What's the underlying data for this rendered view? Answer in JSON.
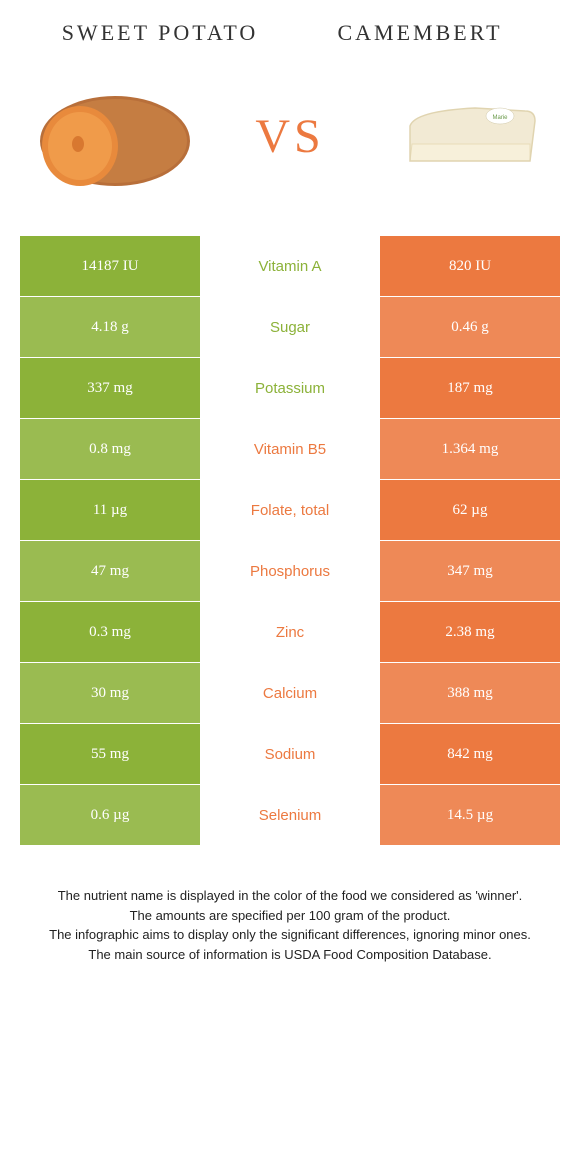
{
  "foods": {
    "left": {
      "name": "SWEET POTATO",
      "color": "#8cb239",
      "winner_text_color": "#8cb239"
    },
    "right": {
      "name": "CAMEMBERT",
      "color": "#ec7940",
      "winner_text_color": "#ec7940"
    }
  },
  "vs_label": "VS",
  "vs_color": "#ec7940",
  "background_color": "#ffffff",
  "row_alt_opacity": 0.88,
  "nutrients": [
    {
      "name": "Vitamin A",
      "left": "14187 IU",
      "right": "820 IU",
      "winner": "left"
    },
    {
      "name": "Sugar",
      "left": "4.18 g",
      "right": "0.46 g",
      "winner": "left"
    },
    {
      "name": "Potassium",
      "left": "337 mg",
      "right": "187 mg",
      "winner": "left"
    },
    {
      "name": "Vitamin B5",
      "left": "0.8 mg",
      "right": "1.364 mg",
      "winner": "right"
    },
    {
      "name": "Folate, total",
      "left": "11 µg",
      "right": "62 µg",
      "winner": "right"
    },
    {
      "name": "Phosphorus",
      "left": "47 mg",
      "right": "347 mg",
      "winner": "right"
    },
    {
      "name": "Zinc",
      "left": "0.3 mg",
      "right": "2.38 mg",
      "winner": "right"
    },
    {
      "name": "Calcium",
      "left": "30 mg",
      "right": "388 mg",
      "winner": "right"
    },
    {
      "name": "Sodium",
      "left": "55 mg",
      "right": "842 mg",
      "winner": "right"
    },
    {
      "name": "Selenium",
      "left": "0.6 µg",
      "right": "14.5 µg",
      "winner": "right"
    }
  ],
  "footnotes": [
    "The nutrient name is displayed in the color of the food we considered as 'winner'.",
    "The amounts are specified per 100 gram of the product.",
    "The infographic aims to display only the significant differences, ignoring minor ones.",
    "The main source of information is USDA Food Composition Database."
  ]
}
